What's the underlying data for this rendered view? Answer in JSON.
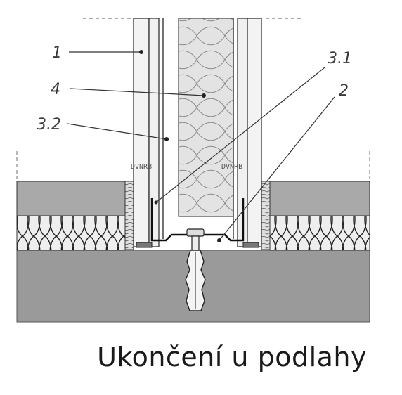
{
  "caption": "Ukončení u podlahy",
  "callouts": {
    "c1": "1",
    "c4": "4",
    "c32": "3.2",
    "c31": "3.1",
    "c2": "2"
  },
  "board_print_left": "DVNRB",
  "board_print_right": "DVNRB",
  "colors": {
    "line": "#333333",
    "slab": "#9a9a9a",
    "screed": "#a9a9a9",
    "insulation_fill": "#e6e6e6",
    "board": "#f2f2f2",
    "mineral_wool": "#e3e3e3"
  }
}
